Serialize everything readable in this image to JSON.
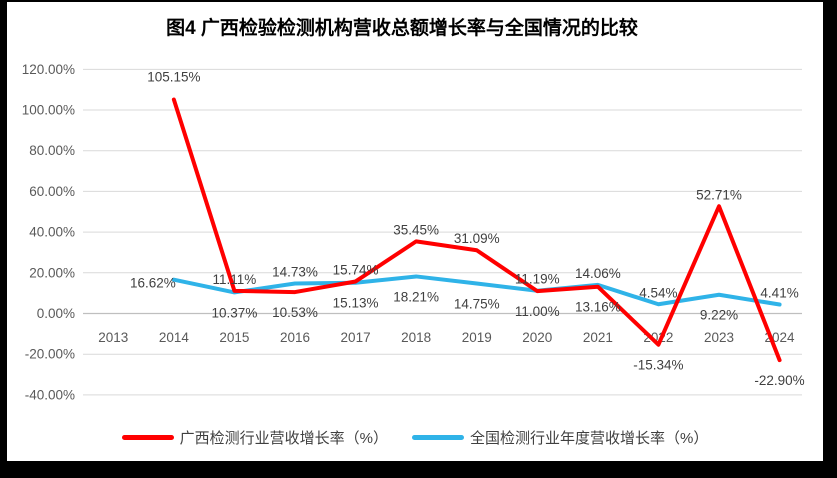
{
  "title": "图4 广西检验检测机构营收总额增长率与全国情况的比较",
  "colors": {
    "guangxi": "#FF0000",
    "national": "#2FB3E8",
    "gridline": "#D9D9D9",
    "axis_line": "#BFBFBF",
    "tick_text": "#595959",
    "label_text": "#404040",
    "frame": "#000000",
    "background": "#FFFFFF"
  },
  "chart_data": {
    "type": "line",
    "categories": [
      "2013",
      "2014",
      "2015",
      "2016",
      "2017",
      "2018",
      "2019",
      "2020",
      "2021",
      "2022",
      "2023",
      "2024"
    ],
    "series": [
      {
        "name": "广西检测行业营收增长率（%）",
        "color_key": "guangxi",
        "values": [
          null,
          105.15,
          11.11,
          10.53,
          15.74,
          35.45,
          31.09,
          11.0,
          13.16,
          -15.34,
          52.71,
          -22.9
        ],
        "labels": [
          null,
          "105.15%",
          "11.11%",
          "10.53%",
          "15.74%",
          "35.45%",
          "31.09%",
          "11.00%",
          "13.16%",
          "-15.34%",
          "52.71%",
          "-22.90%"
        ]
      },
      {
        "name": "全国检测行业年度营收增长率（%）",
        "color_key": "national",
        "values": [
          null,
          16.62,
          10.37,
          14.73,
          15.13,
          18.21,
          14.75,
          11.19,
          14.06,
          4.54,
          9.22,
          4.41
        ],
        "labels": [
          null,
          "16.62%",
          "10.37%",
          "14.73%",
          "15.13%",
          "18.21%",
          "14.75%",
          "11.19%",
          "14.06%",
          "4.54%",
          "9.22%",
          "4.41%"
        ]
      }
    ],
    "y_axis": {
      "ticks": [
        "120.00%",
        "100.00%",
        "80.00%",
        "60.00%",
        "40.00%",
        "20.00%",
        "0.00%",
        "-20.00%",
        "-40.00%"
      ],
      "tick_values": [
        120,
        100,
        80,
        60,
        40,
        20,
        0,
        -20,
        -40
      ],
      "min": -40,
      "max": 120
    },
    "grid": true,
    "legend_position": "bottom",
    "title": "图4 广西检验检测机构营收总额增长率与全国情况的比较",
    "xlabel": "",
    "ylabel": ""
  },
  "legend": {
    "items": [
      {
        "label": "广西检测行业营收增长率（%）"
      },
      {
        "label": "全国检测行业年度营收增长率（%）"
      }
    ]
  }
}
